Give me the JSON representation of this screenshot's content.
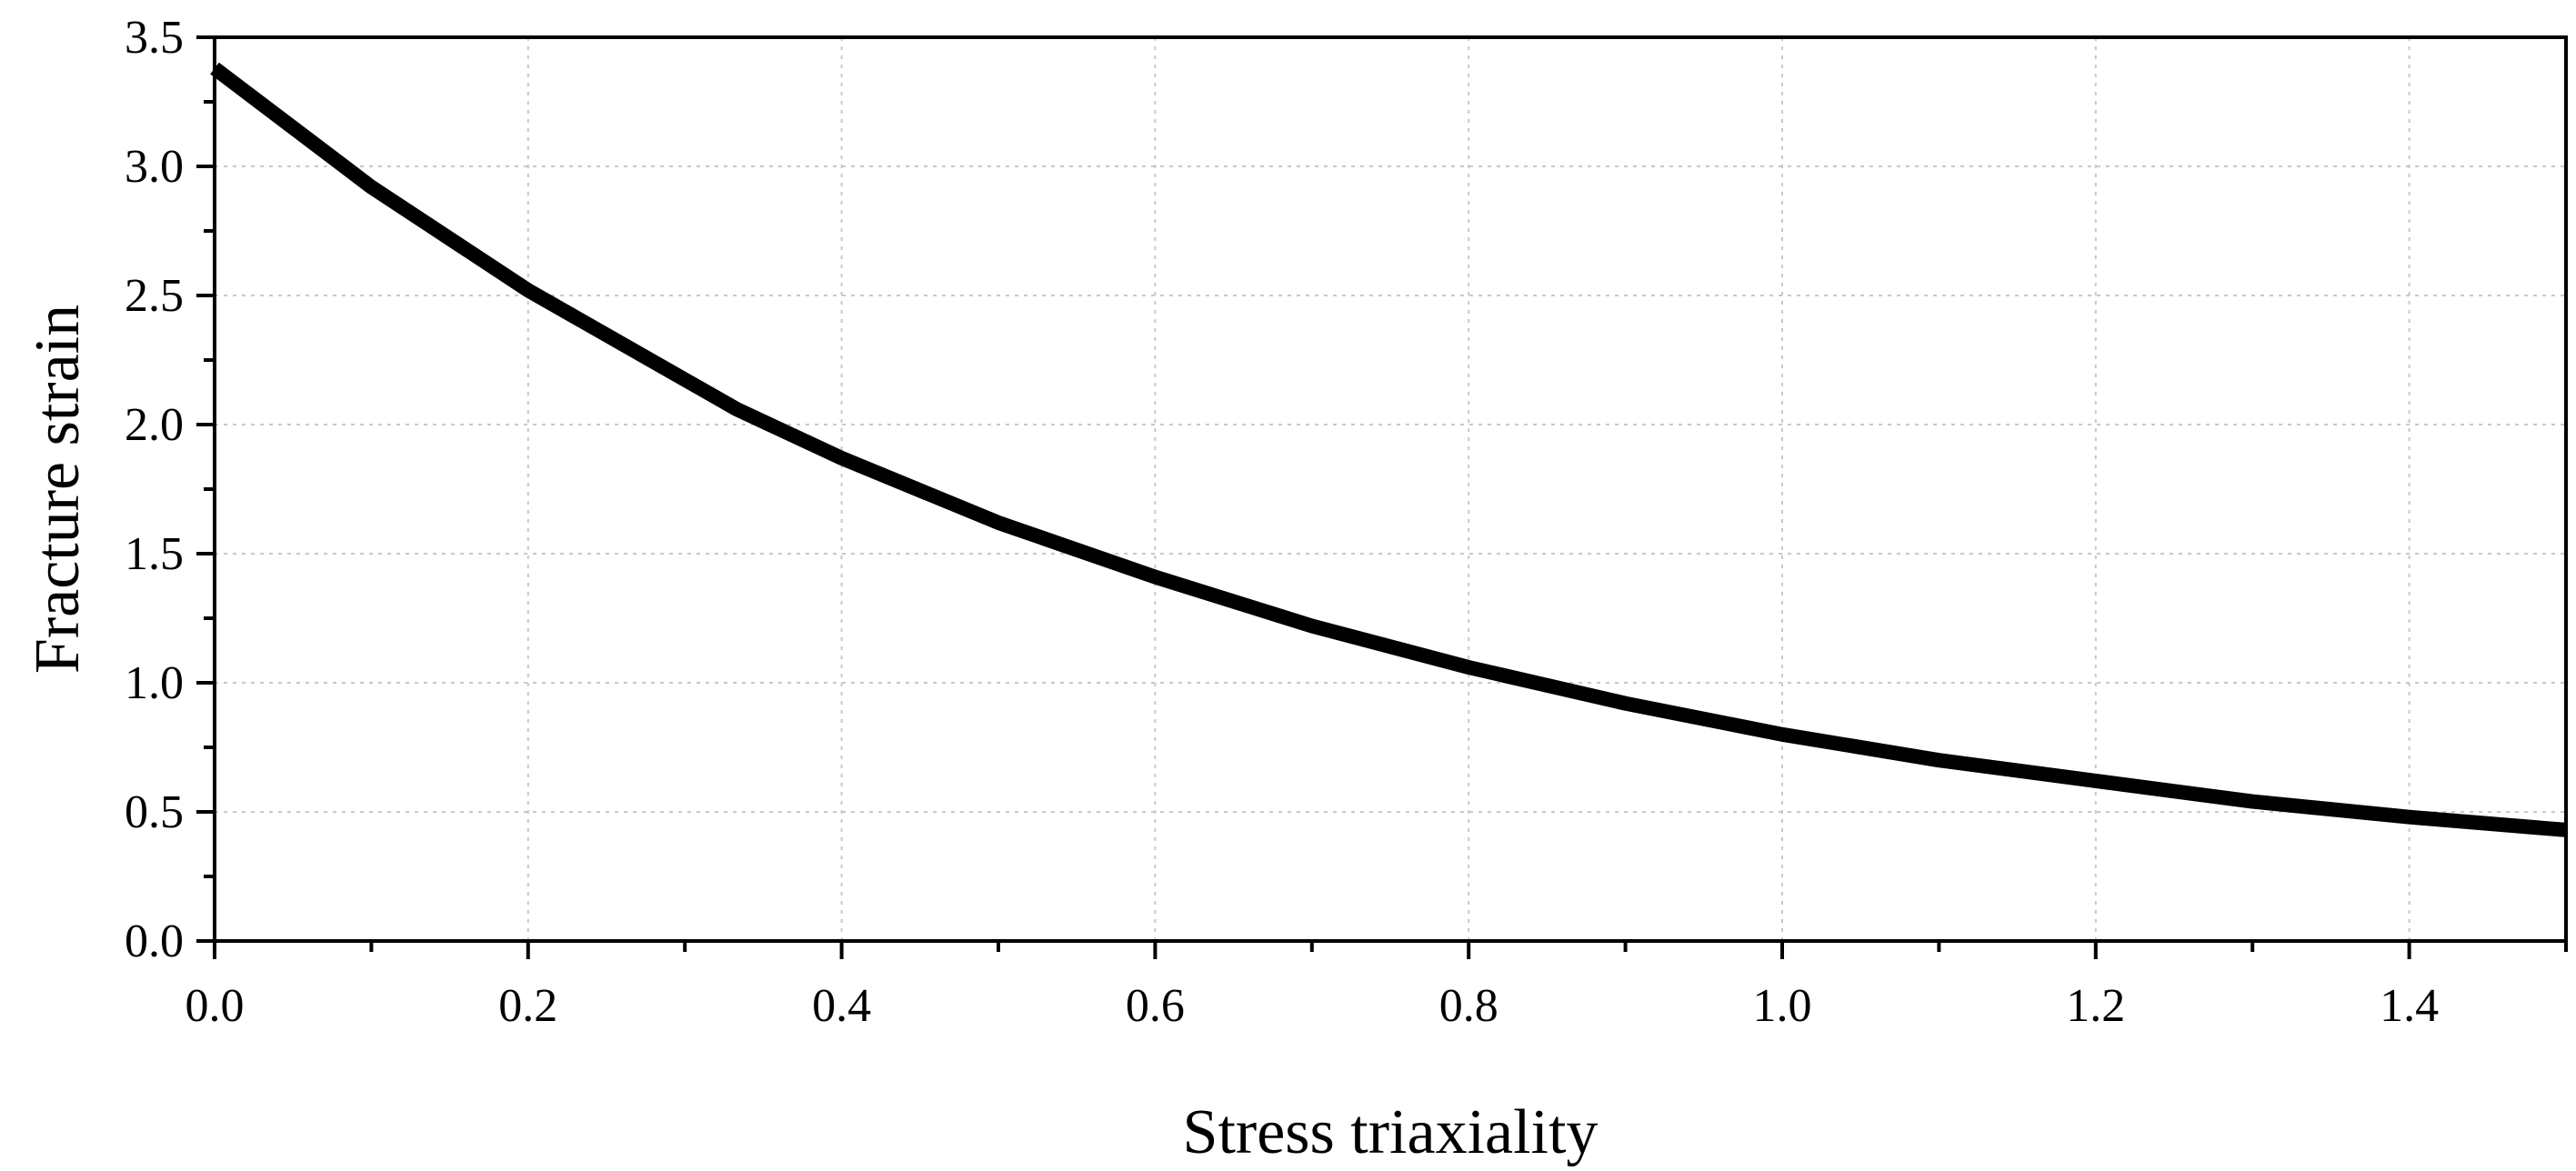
{
  "chart_data": {
    "type": "line",
    "title": "",
    "xlabel": "Stress triaxiality",
    "ylabel": "Fracture strain",
    "xlim": [
      0,
      1.5
    ],
    "ylim": [
      0,
      3.5
    ],
    "x_ticks": [
      "0.0",
      "0.2",
      "0.4",
      "0.6",
      "0.8",
      "1.0",
      "1.2",
      "1.4"
    ],
    "y_ticks": [
      "0.0",
      "0.5",
      "1.0",
      "1.5",
      "2.0",
      "2.5",
      "3.0",
      "3.5"
    ],
    "grid": true,
    "line_color": "#000000",
    "series": [
      {
        "x": [
          0.0,
          0.1,
          0.2,
          0.333,
          0.4,
          0.5,
          0.6,
          0.7,
          0.8,
          0.9,
          1.0,
          1.1,
          1.2,
          1.3,
          1.4,
          1.5
        ],
        "y": [
          3.38,
          2.92,
          2.52,
          2.06,
          1.87,
          1.62,
          1.41,
          1.22,
          1.06,
          0.92,
          0.8,
          0.7,
          0.62,
          0.54,
          0.48,
          0.43
        ]
      }
    ]
  }
}
